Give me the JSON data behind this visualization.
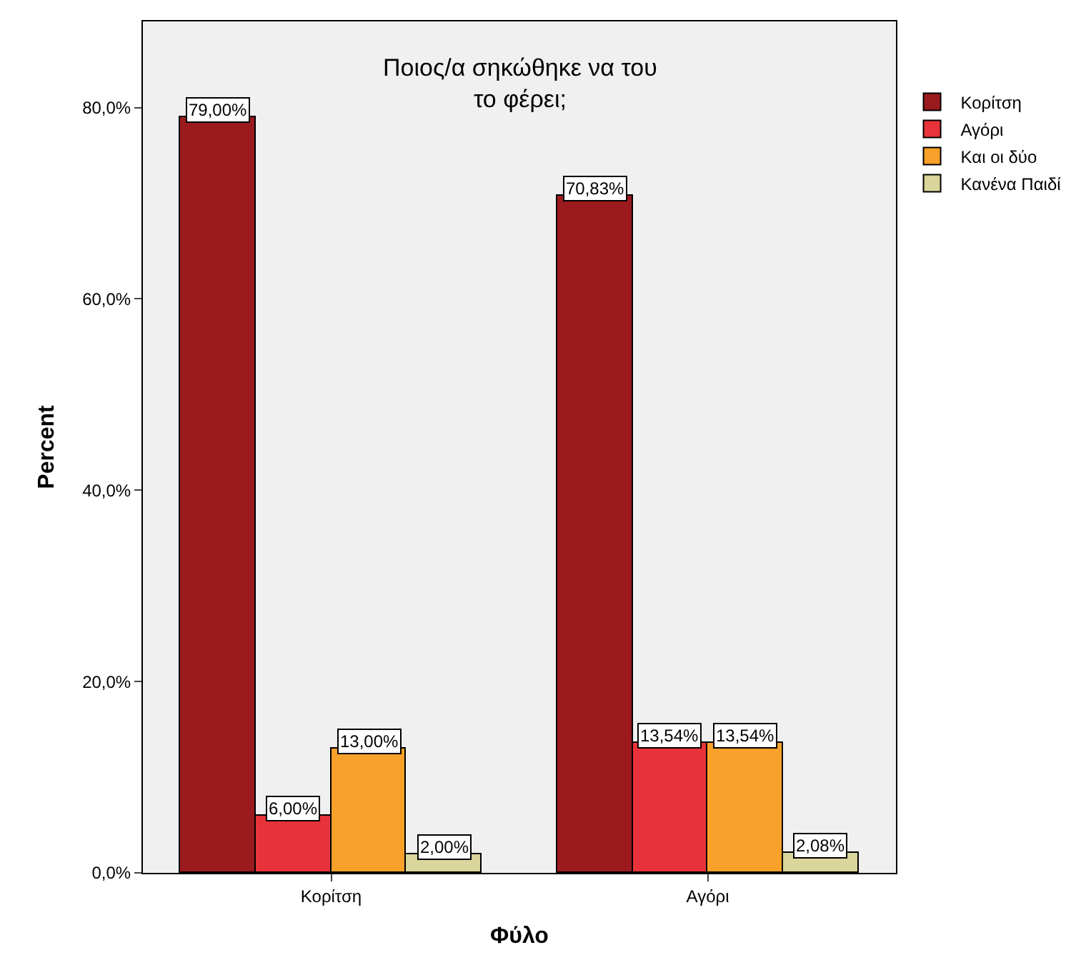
{
  "chart_data": {
    "type": "bar",
    "title": "Ποιος/α σηκώθηκε να του\nτο φέρει;",
    "xlabel": "Φύλο",
    "ylabel": "Percent",
    "categories": [
      "Κορίτση",
      "Αγόρι"
    ],
    "series": [
      {
        "name": "Κορίτση",
        "color": "#9b1a1e",
        "values": [
          79.0,
          70.83
        ],
        "value_labels": [
          "79,00%",
          "70,83%"
        ]
      },
      {
        "name": "Αγόρι",
        "color": "#e8333a",
        "values": [
          6.0,
          13.54
        ],
        "value_labels": [
          "6,00%",
          "13,54%"
        ]
      },
      {
        "name": "Και οι δύο",
        "color": "#f7a12a",
        "values": [
          13.0,
          13.54
        ],
        "value_labels": [
          "13,00%",
          "13,54%"
        ]
      },
      {
        "name": "Κανένα Παιδί",
        "color": "#d9d59b",
        "values": [
          2.0,
          2.08
        ],
        "value_labels": [
          "2,00%",
          "2,08%"
        ]
      }
    ],
    "ylim": [
      0,
      89
    ],
    "yticks": [
      {
        "value": 0,
        "label": "0,0%"
      },
      {
        "value": 20,
        "label": "20,0%"
      },
      {
        "value": 40,
        "label": "40,0%"
      },
      {
        "value": 60,
        "label": "60,0%"
      },
      {
        "value": 80,
        "label": "80,0%"
      }
    ],
    "grid": false,
    "legend": "top right"
  }
}
